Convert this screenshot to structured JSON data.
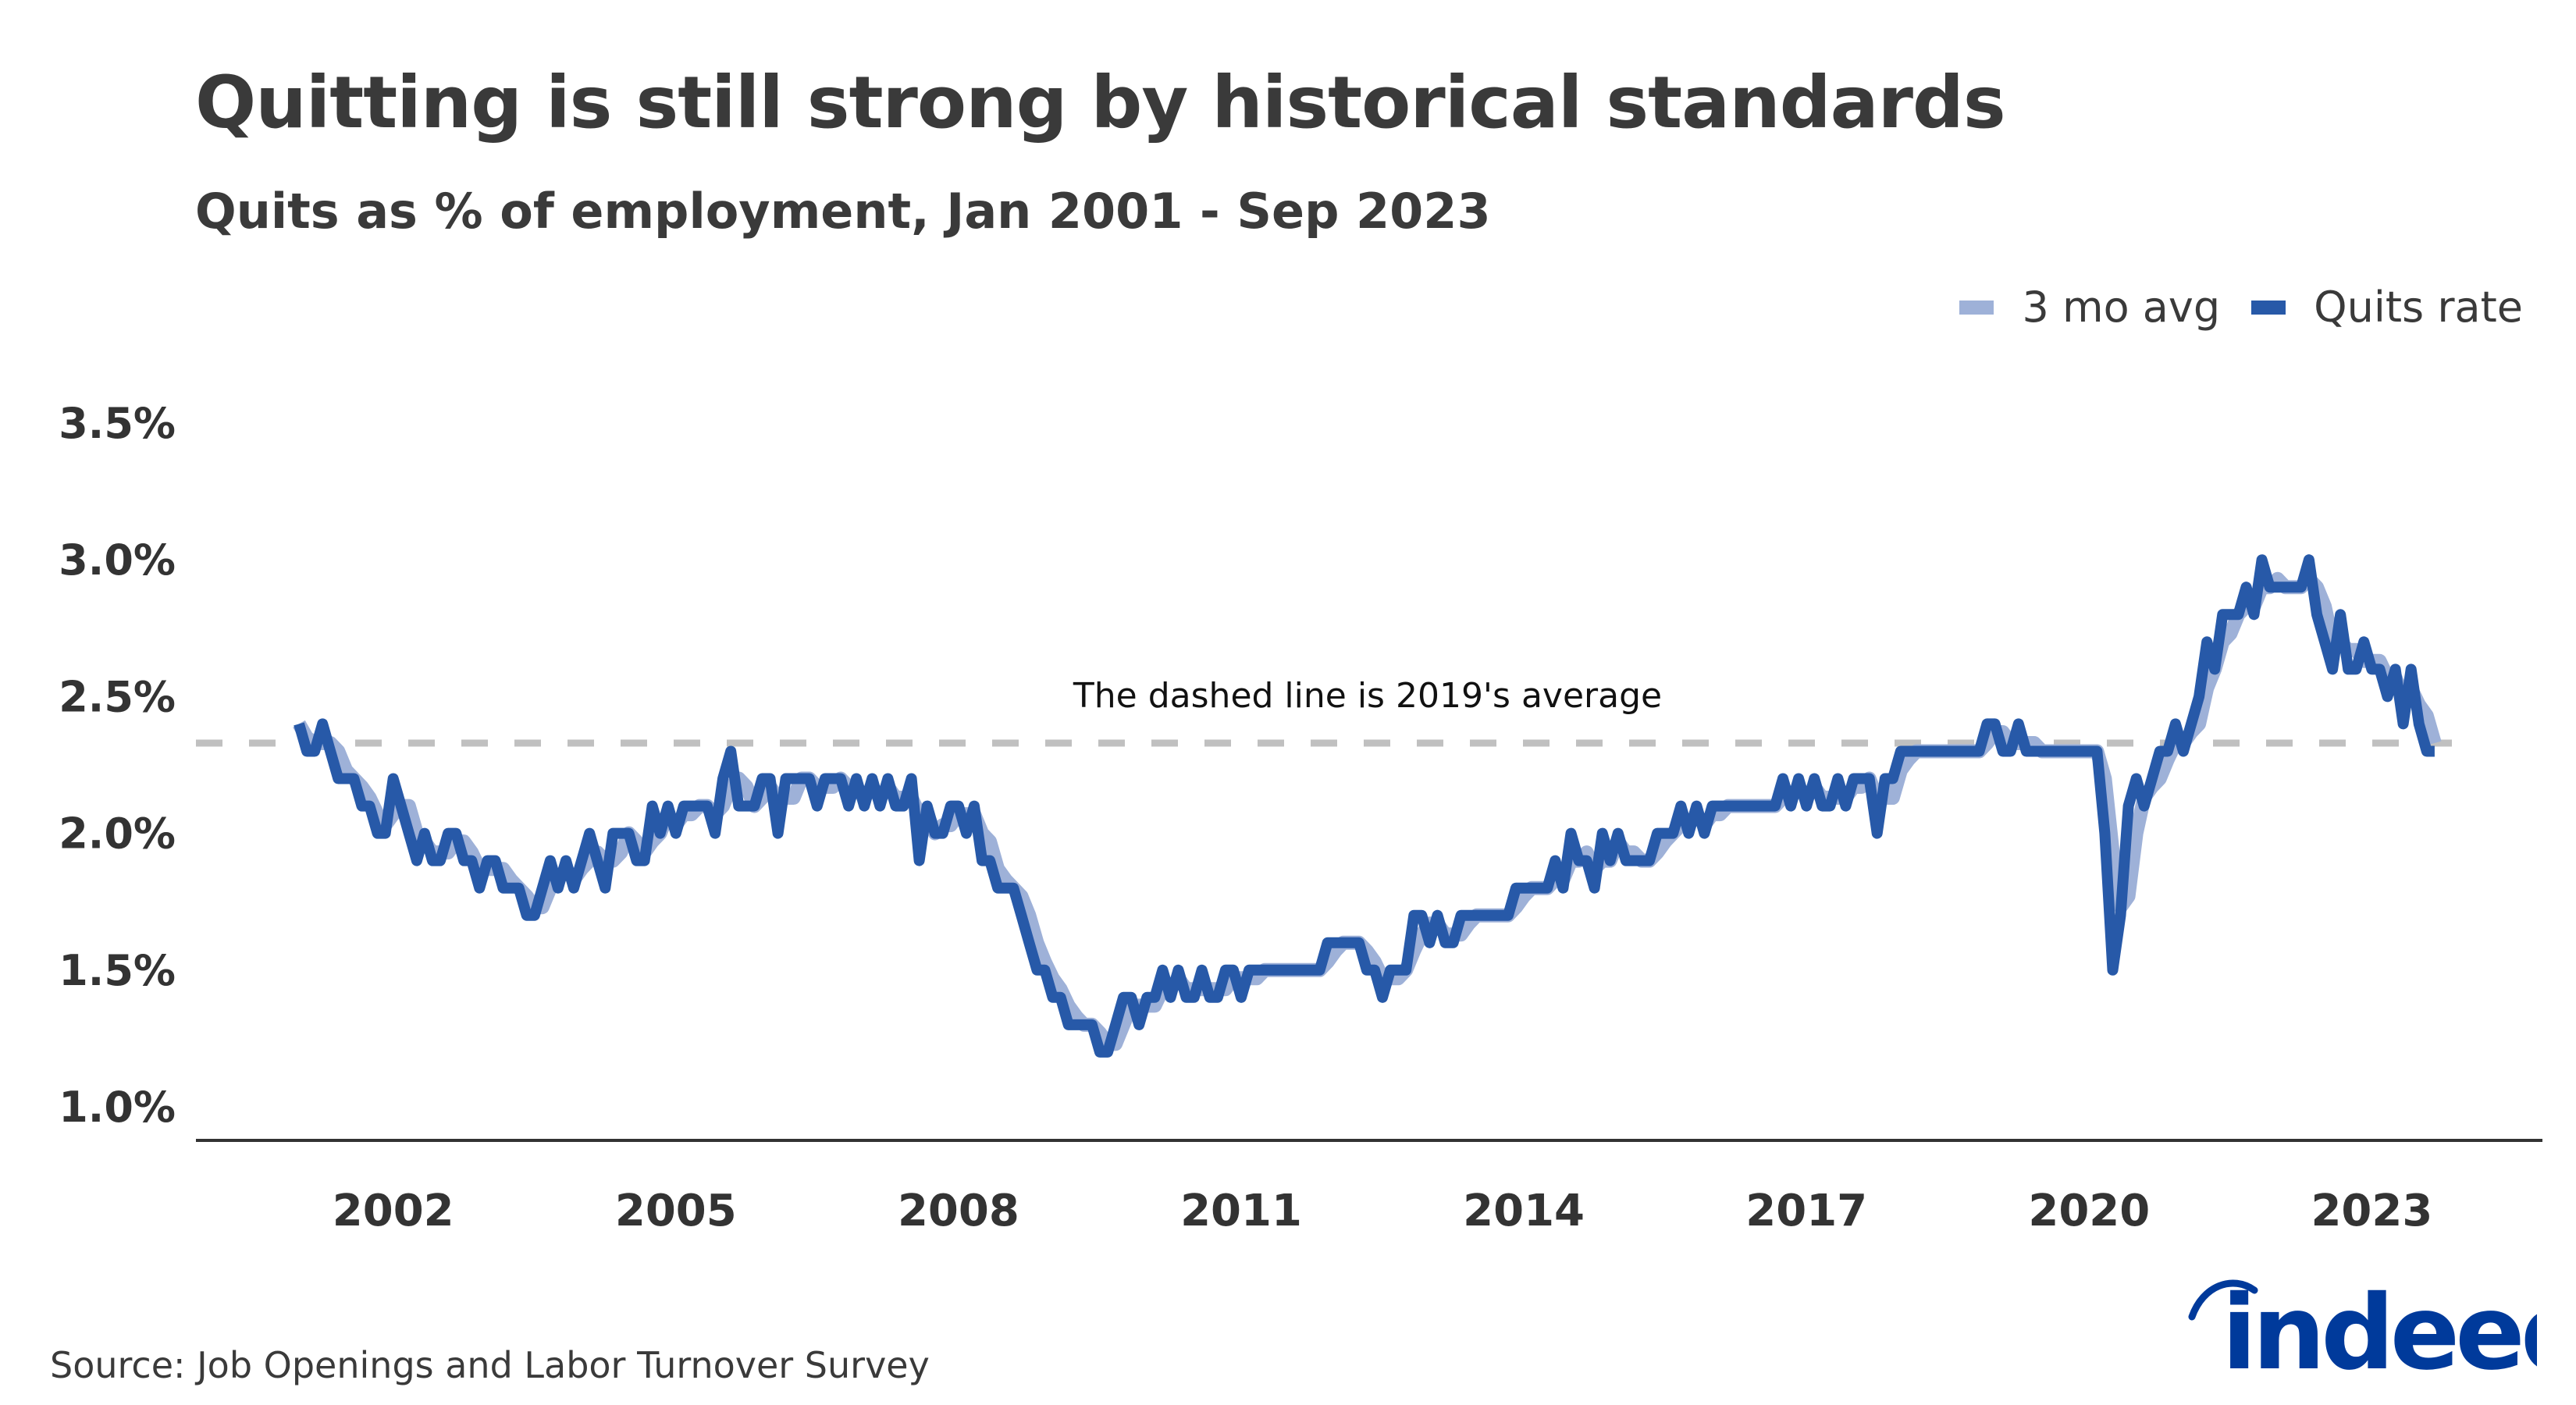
{
  "header": {
    "title": "Quitting is still strong by historical standards",
    "subtitle": "Quits as % of employment, Jan 2001 - Sep 2023"
  },
  "legend": [
    {
      "label": "3 mo avg",
      "color": "#9eb1d8"
    },
    {
      "label": "Quits rate",
      "color": "#2759a8"
    }
  ],
  "source": "Source: Job Openings and Labor Turnover Survey",
  "brand": {
    "name": "indeed",
    "color": "#003a9b"
  },
  "chart_data": {
    "type": "line",
    "title": "Quitting is still strong by historical standards",
    "subtitle": "Quits as % of employment, Jan 2001 - Sep 2023",
    "xlabel": "",
    "ylabel": "",
    "x_start": "2001-01",
    "x_end": "2023-09",
    "frequency": "monthly",
    "x_ticks": [
      "2002",
      "2005",
      "2008",
      "2011",
      "2014",
      "2017",
      "2020",
      "2023"
    ],
    "y_ticks": [
      "1.0%",
      "1.5%",
      "2.0%",
      "2.5%",
      "3.0%",
      "3.5%"
    ],
    "ylim": [
      1.0,
      3.5
    ],
    "grid": false,
    "legend_position": "top-right",
    "reference_line": {
      "value": 2.33,
      "style": "dashed",
      "color": "#c0c0c0",
      "label": "The dashed line is 2019's average"
    },
    "series": [
      {
        "name": "Quits rate",
        "color": "#2759a8",
        "values": [
          2.4,
          2.3,
          2.3,
          2.4,
          2.3,
          2.2,
          2.2,
          2.2,
          2.1,
          2.1,
          2.0,
          2.0,
          2.2,
          2.1,
          2.0,
          1.9,
          2.0,
          1.9,
          1.9,
          2.0,
          2.0,
          1.9,
          1.9,
          1.8,
          1.9,
          1.9,
          1.8,
          1.8,
          1.8,
          1.7,
          1.7,
          1.8,
          1.9,
          1.8,
          1.9,
          1.8,
          1.9,
          2.0,
          1.9,
          1.8,
          2.0,
          2.0,
          2.0,
          1.9,
          1.9,
          2.1,
          2.0,
          2.1,
          2.0,
          2.1,
          2.1,
          2.1,
          2.1,
          2.0,
          2.2,
          2.3,
          2.1,
          2.1,
          2.1,
          2.2,
          2.2,
          2.0,
          2.2,
          2.2,
          2.2,
          2.2,
          2.1,
          2.2,
          2.2,
          2.2,
          2.1,
          2.2,
          2.1,
          2.2,
          2.1,
          2.2,
          2.1,
          2.1,
          2.2,
          1.9,
          2.1,
          2.0,
          2.0,
          2.1,
          2.1,
          2.0,
          2.1,
          1.9,
          1.9,
          1.8,
          1.8,
          1.8,
          1.7,
          1.6,
          1.5,
          1.5,
          1.4,
          1.4,
          1.3,
          1.3,
          1.3,
          1.3,
          1.2,
          1.2,
          1.3,
          1.4,
          1.4,
          1.3,
          1.4,
          1.4,
          1.5,
          1.4,
          1.5,
          1.4,
          1.4,
          1.5,
          1.4,
          1.4,
          1.5,
          1.5,
          1.4,
          1.5,
          1.5,
          1.5,
          1.5,
          1.5,
          1.5,
          1.5,
          1.5,
          1.5,
          1.5,
          1.6,
          1.6,
          1.6,
          1.6,
          1.6,
          1.5,
          1.5,
          1.4,
          1.5,
          1.5,
          1.5,
          1.7,
          1.7,
          1.6,
          1.7,
          1.6,
          1.6,
          1.7,
          1.7,
          1.7,
          1.7,
          1.7,
          1.7,
          1.7,
          1.8,
          1.8,
          1.8,
          1.8,
          1.8,
          1.9,
          1.8,
          2.0,
          1.9,
          1.9,
          1.8,
          2.0,
          1.9,
          2.0,
          1.9,
          1.9,
          1.9,
          1.9,
          2.0,
          2.0,
          2.0,
          2.1,
          2.0,
          2.1,
          2.0,
          2.1,
          2.1,
          2.1,
          2.1,
          2.1,
          2.1,
          2.1,
          2.1,
          2.1,
          2.2,
          2.1,
          2.2,
          2.1,
          2.2,
          2.1,
          2.1,
          2.2,
          2.1,
          2.2,
          2.2,
          2.2,
          2.0,
          2.2,
          2.2,
          2.3,
          2.3,
          2.3,
          2.3,
          2.3,
          2.3,
          2.3,
          2.3,
          2.3,
          2.3,
          2.3,
          2.4,
          2.4,
          2.3,
          2.3,
          2.4,
          2.3,
          2.3,
          2.3,
          2.3,
          2.3,
          2.3,
          2.3,
          2.3,
          2.3,
          2.3,
          2.0,
          1.5,
          1.7,
          2.1,
          2.2,
          2.1,
          2.2,
          2.3,
          2.3,
          2.4,
          2.3,
          2.4,
          2.5,
          2.7,
          2.6,
          2.8,
          2.8,
          2.8,
          2.9,
          2.8,
          3.0,
          2.9,
          2.9,
          2.9,
          2.9,
          2.9,
          3.0,
          2.8,
          2.7,
          2.6,
          2.8,
          2.6,
          2.6,
          2.7,
          2.6,
          2.6,
          2.5,
          2.6,
          2.4,
          2.6,
          2.4,
          2.3,
          2.3
        ]
      },
      {
        "name": "3 mo avg",
        "color": "#9eb1d8",
        "values": [
          2.4,
          2.35,
          2.33,
          2.33,
          2.33,
          2.3,
          2.23,
          2.2,
          2.17,
          2.13,
          2.07,
          2.03,
          2.07,
          2.1,
          2.1,
          2.0,
          1.97,
          1.93,
          1.93,
          1.93,
          1.97,
          1.97,
          1.93,
          1.87,
          1.87,
          1.87,
          1.87,
          1.83,
          1.8,
          1.77,
          1.73,
          1.73,
          1.8,
          1.83,
          1.87,
          1.83,
          1.87,
          1.9,
          1.93,
          1.9,
          1.9,
          1.93,
          2.0,
          1.97,
          1.93,
          1.97,
          2.0,
          2.07,
          2.03,
          2.07,
          2.07,
          2.1,
          2.1,
          2.07,
          2.1,
          2.17,
          2.2,
          2.17,
          2.1,
          2.13,
          2.17,
          2.13,
          2.13,
          2.13,
          2.2,
          2.2,
          2.17,
          2.17,
          2.17,
          2.2,
          2.17,
          2.17,
          2.13,
          2.17,
          2.13,
          2.17,
          2.13,
          2.13,
          2.13,
          2.07,
          2.07,
          2.0,
          2.03,
          2.03,
          2.07,
          2.07,
          2.07,
          2.0,
          1.97,
          1.87,
          1.83,
          1.8,
          1.77,
          1.7,
          1.6,
          1.53,
          1.47,
          1.43,
          1.37,
          1.33,
          1.3,
          1.3,
          1.27,
          1.23,
          1.23,
          1.3,
          1.37,
          1.37,
          1.37,
          1.37,
          1.43,
          1.43,
          1.47,
          1.43,
          1.43,
          1.43,
          1.43,
          1.43,
          1.43,
          1.47,
          1.47,
          1.47,
          1.47,
          1.5,
          1.5,
          1.5,
          1.5,
          1.5,
          1.5,
          1.5,
          1.5,
          1.53,
          1.57,
          1.6,
          1.6,
          1.6,
          1.57,
          1.53,
          1.47,
          1.47,
          1.47,
          1.5,
          1.57,
          1.63,
          1.67,
          1.67,
          1.63,
          1.63,
          1.63,
          1.67,
          1.7,
          1.7,
          1.7,
          1.7,
          1.7,
          1.73,
          1.77,
          1.8,
          1.8,
          1.8,
          1.83,
          1.83,
          1.9,
          1.9,
          1.93,
          1.87,
          1.9,
          1.9,
          1.97,
          1.93,
          1.93,
          1.9,
          1.9,
          1.93,
          1.97,
          2.0,
          2.03,
          2.03,
          2.07,
          2.03,
          2.07,
          2.07,
          2.1,
          2.1,
          2.1,
          2.1,
          2.1,
          2.1,
          2.1,
          2.13,
          2.13,
          2.17,
          2.13,
          2.17,
          2.13,
          2.13,
          2.13,
          2.13,
          2.17,
          2.17,
          2.2,
          2.13,
          2.13,
          2.13,
          2.23,
          2.27,
          2.3,
          2.3,
          2.3,
          2.3,
          2.3,
          2.3,
          2.3,
          2.3,
          2.3,
          2.33,
          2.37,
          2.37,
          2.33,
          2.33,
          2.33,
          2.33,
          2.3,
          2.3,
          2.3,
          2.3,
          2.3,
          2.3,
          2.3,
          2.3,
          2.2,
          1.93,
          1.73,
          1.77,
          2.0,
          2.13,
          2.17,
          2.2,
          2.27,
          2.33,
          2.33,
          2.37,
          2.4,
          2.53,
          2.6,
          2.7,
          2.73,
          2.8,
          2.83,
          2.83,
          2.9,
          2.9,
          2.93,
          2.9,
          2.9,
          2.9,
          2.93,
          2.9,
          2.83,
          2.7,
          2.7,
          2.67,
          2.67,
          2.63,
          2.63,
          2.63,
          2.57,
          2.57,
          2.5,
          2.53,
          2.47,
          2.43,
          2.33
        ]
      }
    ]
  }
}
